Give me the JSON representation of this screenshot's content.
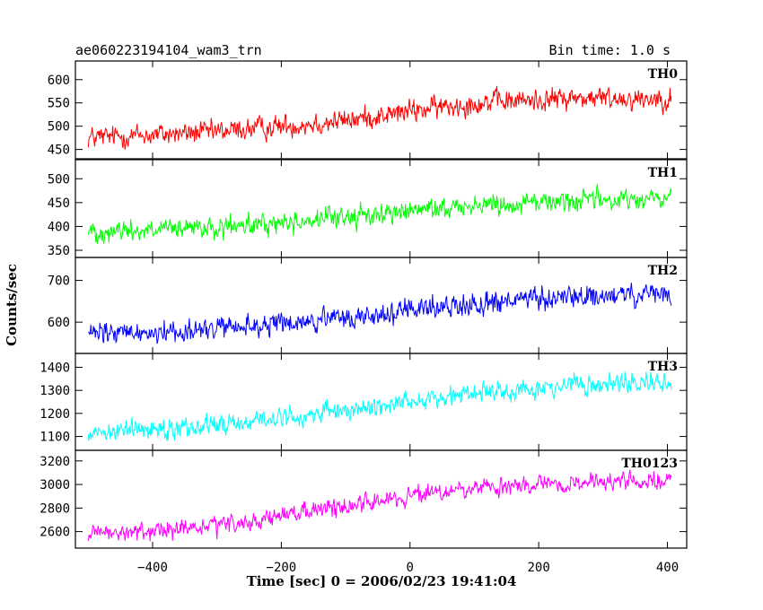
{
  "header": {
    "title": "ae060223194104_wam3_trn",
    "bin_time": "Bin time: 1.0 s"
  },
  "chart_data": {
    "type": "line",
    "title": "ae060223194104_wam3_trn",
    "xlabel": "Time [sec] 0 = 2006/02/23 19:41:04",
    "ylabel": "Counts/sec",
    "xlim": [
      -520,
      430
    ],
    "x_ticks": [
      -400,
      -200,
      0,
      200,
      400
    ],
    "x_tick_labels": [
      "−400",
      "−200",
      "0",
      "200",
      "400"
    ],
    "grid": false,
    "x": {
      "start": -500,
      "end": 406,
      "step": 1
    },
    "panels": [
      {
        "name": "TH0",
        "color": "#ff0000",
        "ylim": [
          430,
          640
        ],
        "yticks": [
          450,
          500,
          550,
          600
        ],
        "trend": [
          [
            -500,
            475
          ],
          [
            -300,
            488
          ],
          [
            -100,
            512
          ],
          [
            0,
            532
          ],
          [
            100,
            550
          ],
          [
            250,
            560
          ],
          [
            406,
            560
          ]
        ],
        "noise_amplitude": 30,
        "range": [
          430,
          640
        ]
      },
      {
        "name": "TH1",
        "color": "#00ff00",
        "ylim": [
          335,
          540
        ],
        "yticks": [
          350,
          400,
          450,
          500
        ],
        "trend": [
          [
            -500,
            390
          ],
          [
            -300,
            395
          ],
          [
            -100,
            420
          ],
          [
            0,
            432
          ],
          [
            100,
            445
          ],
          [
            250,
            455
          ],
          [
            406,
            458
          ]
        ],
        "noise_amplitude": 28,
        "range": [
          340,
          535
        ]
      },
      {
        "name": "TH2",
        "color": "#0000ff",
        "ylim": [
          525,
          755
        ],
        "yticks": [
          600,
          700
        ],
        "trend": [
          [
            -500,
            570
          ],
          [
            -300,
            583
          ],
          [
            -100,
            608
          ],
          [
            0,
            628
          ],
          [
            100,
            645
          ],
          [
            250,
            660
          ],
          [
            406,
            665
          ]
        ],
        "noise_amplitude": 34,
        "range": [
          528,
          752
        ]
      },
      {
        "name": "TH3",
        "color": "#00ffff",
        "ylim": [
          1040,
          1460
        ],
        "yticks": [
          1100,
          1200,
          1300,
          1400
        ],
        "trend": [
          [
            -500,
            1120
          ],
          [
            -300,
            1150
          ],
          [
            -100,
            1210
          ],
          [
            0,
            1255
          ],
          [
            100,
            1290
          ],
          [
            250,
            1320
          ],
          [
            406,
            1335
          ]
        ],
        "noise_amplitude": 55,
        "range": [
          1045,
          1455
        ]
      },
      {
        "name": "TH0123",
        "color": "#ff00ff",
        "ylim": [
          2460,
          3290
        ],
        "yticks": [
          2600,
          2800,
          3000,
          3200
        ],
        "trend": [
          [
            -500,
            2570
          ],
          [
            -300,
            2640
          ],
          [
            -100,
            2820
          ],
          [
            0,
            2900
          ],
          [
            100,
            2960
          ],
          [
            250,
            3010
          ],
          [
            406,
            3030
          ]
        ],
        "noise_amplitude": 95,
        "range": [
          2470,
          3280
        ]
      }
    ]
  }
}
